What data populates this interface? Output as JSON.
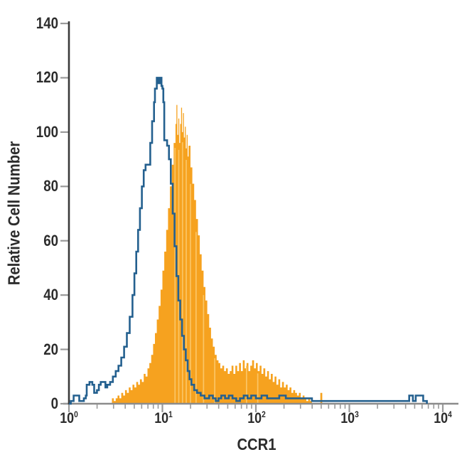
{
  "figure": {
    "background": "#ffffff"
  },
  "chart_data": {
    "type": "area",
    "subtype": "flow-cytometry-overlay-histogram",
    "title": "",
    "xlabel": "CCR1",
    "ylabel": "Relative Cell Number",
    "x_scale": "log10",
    "x_range": [
      1,
      10000
    ],
    "ylim": [
      0,
      140
    ],
    "grid": "off",
    "legend": "none",
    "colors": {
      "filled_histogram": "#F6A21F",
      "filled_histogram_streak": "#FBC565",
      "outline_histogram": "#24608F",
      "x_axis_line": "#8C8C8C",
      "y_axis_line": "#3A3A3A",
      "tick": "#9A9A9A",
      "text": "#2C2C2C"
    },
    "x_ticks": [
      {
        "base": "10",
        "exp": "0",
        "log": 0
      },
      {
        "base": "10",
        "exp": "1",
        "log": 1
      },
      {
        "base": "10",
        "exp": "2",
        "log": 2
      },
      {
        "base": "10",
        "exp": "3",
        "log": 3
      },
      {
        "base": "10",
        "exp": "4",
        "log": 4
      }
    ],
    "y_ticks": [
      "0",
      "20",
      "40",
      "60",
      "80",
      "100",
      "120",
      "140"
    ],
    "series": [
      {
        "name": "filled-orange-histogram",
        "style": "filled",
        "color": "#F6A21F",
        "points_logx_value": [
          [
            0.44,
            0
          ],
          [
            0.46,
            2
          ],
          [
            0.48,
            1
          ],
          [
            0.5,
            2
          ],
          [
            0.52,
            3
          ],
          [
            0.54,
            2
          ],
          [
            0.56,
            4
          ],
          [
            0.58,
            3
          ],
          [
            0.6,
            5
          ],
          [
            0.62,
            4
          ],
          [
            0.64,
            6
          ],
          [
            0.66,
            5
          ],
          [
            0.68,
            7
          ],
          [
            0.7,
            6
          ],
          [
            0.72,
            8
          ],
          [
            0.74,
            7
          ],
          [
            0.76,
            9
          ],
          [
            0.78,
            8
          ],
          [
            0.8,
            11
          ],
          [
            0.82,
            10
          ],
          [
            0.84,
            13
          ],
          [
            0.86,
            15
          ],
          [
            0.88,
            18
          ],
          [
            0.9,
            22
          ],
          [
            0.92,
            26
          ],
          [
            0.94,
            31
          ],
          [
            0.96,
            36
          ],
          [
            0.98,
            42
          ],
          [
            1.0,
            49
          ],
          [
            1.02,
            56
          ],
          [
            1.04,
            64
          ],
          [
            1.06,
            72
          ],
          [
            1.08,
            80
          ],
          [
            1.1,
            88
          ],
          [
            1.12,
            96
          ],
          [
            1.14,
            103
          ],
          [
            1.15,
            110
          ],
          [
            1.16,
            99
          ],
          [
            1.17,
            105
          ],
          [
            1.18,
            96
          ],
          [
            1.19,
            103
          ],
          [
            1.2,
            109
          ],
          [
            1.21,
            100
          ],
          [
            1.22,
            107
          ],
          [
            1.23,
            98
          ],
          [
            1.24,
            102
          ],
          [
            1.25,
            94
          ],
          [
            1.26,
            99
          ],
          [
            1.27,
            91
          ],
          [
            1.28,
            95
          ],
          [
            1.3,
            87
          ],
          [
            1.32,
            81
          ],
          [
            1.34,
            75
          ],
          [
            1.36,
            68
          ],
          [
            1.38,
            62
          ],
          [
            1.4,
            55
          ],
          [
            1.42,
            49
          ],
          [
            1.44,
            43
          ],
          [
            1.46,
            38
          ],
          [
            1.48,
            33
          ],
          [
            1.5,
            28
          ],
          [
            1.52,
            24
          ],
          [
            1.54,
            21
          ],
          [
            1.56,
            18
          ],
          [
            1.58,
            16
          ],
          [
            1.6,
            15
          ],
          [
            1.62,
            13
          ],
          [
            1.64,
            14
          ],
          [
            1.66,
            12
          ],
          [
            1.68,
            13
          ],
          [
            1.7,
            11
          ],
          [
            1.72,
            12
          ],
          [
            1.74,
            14
          ],
          [
            1.76,
            11
          ],
          [
            1.78,
            14
          ],
          [
            1.8,
            12
          ],
          [
            1.82,
            15
          ],
          [
            1.84,
            12
          ],
          [
            1.86,
            16
          ],
          [
            1.88,
            13
          ],
          [
            1.9,
            15
          ],
          [
            1.92,
            12
          ],
          [
            1.94,
            14
          ],
          [
            1.96,
            16
          ],
          [
            1.98,
            13
          ],
          [
            2.0,
            15
          ],
          [
            2.02,
            12
          ],
          [
            2.04,
            14
          ],
          [
            2.06,
            11
          ],
          [
            2.08,
            13
          ],
          [
            2.1,
            10
          ],
          [
            2.12,
            12
          ],
          [
            2.14,
            9
          ],
          [
            2.16,
            11
          ],
          [
            2.18,
            8
          ],
          [
            2.2,
            10
          ],
          [
            2.22,
            7
          ],
          [
            2.24,
            9
          ],
          [
            2.26,
            6
          ],
          [
            2.28,
            8
          ],
          [
            2.3,
            6
          ],
          [
            2.32,
            7
          ],
          [
            2.34,
            5
          ],
          [
            2.36,
            6
          ],
          [
            2.38,
            4
          ],
          [
            2.4,
            5
          ],
          [
            2.42,
            4
          ],
          [
            2.44,
            3
          ],
          [
            2.46,
            4
          ],
          [
            2.48,
            2
          ],
          [
            2.5,
            3
          ],
          [
            2.52,
            2
          ],
          [
            2.54,
            1
          ],
          [
            2.56,
            2
          ],
          [
            2.58,
            1
          ],
          [
            2.6,
            0
          ],
          [
            2.67,
            0
          ],
          [
            2.69,
            4
          ],
          [
            2.71,
            0
          ]
        ],
        "streaks_logx": [
          1.135,
          1.175,
          1.215,
          1.255,
          1.3,
          1.36,
          1.44,
          1.56,
          1.9,
          2.02
        ]
      },
      {
        "name": "open-blue-histogram",
        "style": "outline",
        "color": "#24608F",
        "points_logx_value": [
          [
            0.0,
            0
          ],
          [
            0.02,
            1
          ],
          [
            0.05,
            3
          ],
          [
            0.09,
            3
          ],
          [
            0.11,
            1
          ],
          [
            0.13,
            1
          ],
          [
            0.16,
            2
          ],
          [
            0.18,
            3
          ],
          [
            0.19,
            7
          ],
          [
            0.22,
            8
          ],
          [
            0.25,
            7
          ],
          [
            0.27,
            4
          ],
          [
            0.3,
            5
          ],
          [
            0.32,
            7
          ],
          [
            0.34,
            8
          ],
          [
            0.37,
            8
          ],
          [
            0.39,
            6
          ],
          [
            0.41,
            7
          ],
          [
            0.44,
            8
          ],
          [
            0.47,
            10
          ],
          [
            0.5,
            12
          ],
          [
            0.53,
            14
          ],
          [
            0.56,
            17
          ],
          [
            0.59,
            21
          ],
          [
            0.62,
            26
          ],
          [
            0.65,
            32
          ],
          [
            0.68,
            40
          ],
          [
            0.7,
            48
          ],
          [
            0.72,
            56
          ],
          [
            0.74,
            64
          ],
          [
            0.76,
            72
          ],
          [
            0.78,
            80
          ],
          [
            0.8,
            86
          ],
          [
            0.82,
            88
          ],
          [
            0.85,
            88
          ],
          [
            0.87,
            96
          ],
          [
            0.89,
            104
          ],
          [
            0.91,
            111
          ],
          [
            0.92,
            116
          ],
          [
            0.94,
            120
          ],
          [
            0.96,
            118
          ],
          [
            0.97,
            120
          ],
          [
            0.99,
            117
          ],
          [
            1.0,
            116
          ],
          [
            1.01,
            111
          ],
          [
            1.02,
            97
          ],
          [
            1.05,
            95
          ],
          [
            1.07,
            90
          ],
          [
            1.09,
            81
          ],
          [
            1.11,
            70
          ],
          [
            1.13,
            58
          ],
          [
            1.15,
            47
          ],
          [
            1.17,
            38
          ],
          [
            1.19,
            31
          ],
          [
            1.21,
            25
          ],
          [
            1.23,
            20
          ],
          [
            1.25,
            16
          ],
          [
            1.27,
            12
          ],
          [
            1.29,
            9
          ],
          [
            1.31,
            7
          ],
          [
            1.34,
            5
          ],
          [
            1.37,
            4
          ],
          [
            1.41,
            3
          ],
          [
            1.45,
            2
          ],
          [
            1.5,
            3
          ],
          [
            1.54,
            2
          ],
          [
            1.57,
            1
          ],
          [
            1.6,
            2
          ],
          [
            1.63,
            3
          ],
          [
            1.67,
            2
          ],
          [
            1.71,
            3
          ],
          [
            1.75,
            2
          ],
          [
            1.79,
            1
          ],
          [
            1.83,
            2
          ],
          [
            1.87,
            3
          ],
          [
            1.91,
            2
          ],
          [
            1.95,
            3
          ],
          [
            2.0,
            2
          ],
          [
            2.06,
            3
          ],
          [
            2.12,
            2
          ],
          [
            2.18,
            2
          ],
          [
            2.25,
            3
          ],
          [
            2.32,
            2
          ],
          [
            2.4,
            2
          ],
          [
            2.5,
            2
          ],
          [
            2.6,
            1
          ],
          [
            2.75,
            1
          ],
          [
            2.9,
            1
          ],
          [
            3.05,
            1
          ],
          [
            3.2,
            1
          ],
          [
            3.35,
            1
          ],
          [
            3.5,
            1
          ],
          [
            3.6,
            1
          ],
          [
            3.64,
            3
          ],
          [
            3.68,
            1
          ],
          [
            3.71,
            3
          ],
          [
            3.76,
            3
          ],
          [
            3.79,
            1
          ],
          [
            3.83,
            0
          ]
        ]
      }
    ]
  }
}
